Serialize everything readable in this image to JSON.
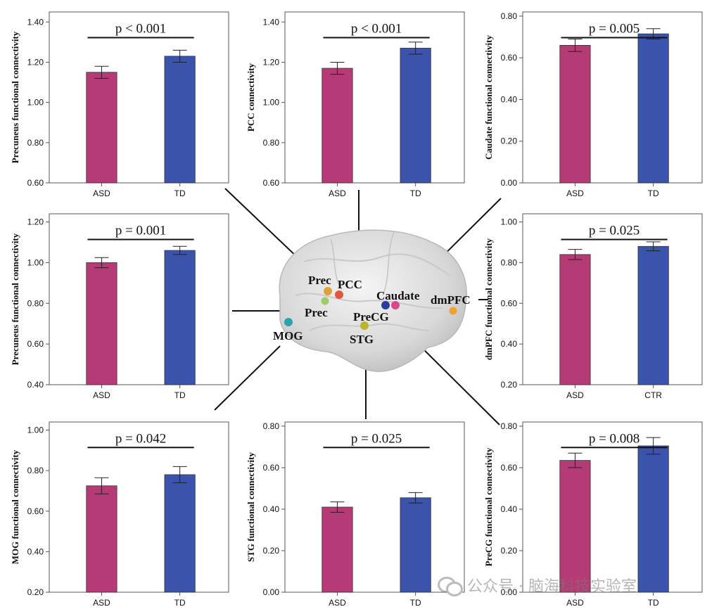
{
  "colors": {
    "asd": "#b63a75",
    "td": "#3b53aa",
    "frame": "#555555"
  },
  "watermark": {
    "text": "公众号 · 脑海科技实验室",
    "icon": "wechat-icon"
  },
  "brain": {
    "labels": [
      "Prec",
      "PCC",
      "Caudate",
      "dmPFC",
      "Prec",
      "PreCG",
      "MOG",
      "STG"
    ],
    "nodes": [
      {
        "region": "Prec",
        "color": "#e0a13a"
      },
      {
        "region": "PCC",
        "color": "#e2563c"
      },
      {
        "region": "Prec",
        "color": "#9ccd6a"
      },
      {
        "region": "Caudate",
        "color": "#2a3ca0"
      },
      {
        "region": "Caudate",
        "color": "#d9488a"
      },
      {
        "region": "dmPFC",
        "color": "#f0a230"
      },
      {
        "region": "PreCG",
        "color": "#b9b531"
      },
      {
        "region": "MOG",
        "color": "#2aa2b0"
      }
    ]
  },
  "chart_data": [
    {
      "id": "precuneus-top",
      "type": "bar",
      "categories": [
        "ASD",
        "TD"
      ],
      "values": [
        1.15,
        1.23
      ],
      "errors": [
        0.03,
        0.03
      ],
      "ylabel": "Precuneus functional connectivity",
      "ylim": [
        0.6,
        1.45
      ],
      "yticks": [
        "0.60",
        "0.80",
        "1.00",
        "1.20",
        "1.40"
      ],
      "pvalue": "p < 0.001"
    },
    {
      "id": "pcc",
      "type": "bar",
      "categories": [
        "ASD",
        "TD"
      ],
      "values": [
        1.17,
        1.27
      ],
      "errors": [
        0.03,
        0.03
      ],
      "ylabel": "PCC connectivity",
      "ylim": [
        0.6,
        1.45
      ],
      "yticks": [
        "0.60",
        "0.80",
        "1.00",
        "1.20",
        "1.40"
      ],
      "pvalue": "p < 0.001"
    },
    {
      "id": "caudate",
      "type": "bar",
      "categories": [
        "ASD",
        "TD"
      ],
      "values": [
        0.66,
        0.715
      ],
      "errors": [
        0.03,
        0.025
      ],
      "ylabel": "Caudate functional connectivity",
      "ylim": [
        0.0,
        0.82
      ],
      "yticks": [
        "0.00",
        "0.20",
        "0.40",
        "0.60",
        "0.80"
      ],
      "pvalue": "p = 0.005"
    },
    {
      "id": "precuneus-mid",
      "type": "bar",
      "categories": [
        "ASD",
        "TD"
      ],
      "values": [
        1.0,
        1.06
      ],
      "errors": [
        0.025,
        0.02
      ],
      "ylabel": "Precuneus functional connectivity",
      "ylim": [
        0.4,
        1.24
      ],
      "yticks": [
        "0.40",
        "0.60",
        "0.80",
        "1.00",
        "1.20"
      ],
      "pvalue": "p = 0.001"
    },
    {
      "id": "dmpfc",
      "type": "bar",
      "categories": [
        "ASD",
        "CTR"
      ],
      "values": [
        0.84,
        0.88
      ],
      "errors": [
        0.025,
        0.022
      ],
      "ylabel": "dmPFC functional connectivity",
      "ylim": [
        0.2,
        1.04
      ],
      "yticks": [
        "0.20",
        "0.40",
        "0.60",
        "0.80",
        "1.00"
      ],
      "pvalue": "p = 0.025"
    },
    {
      "id": "mog",
      "type": "bar",
      "categories": [
        "ASD",
        "TD"
      ],
      "values": [
        0.725,
        0.78
      ],
      "errors": [
        0.04,
        0.04
      ],
      "ylabel": "MOG functional connectivity",
      "ylim": [
        0.2,
        1.04
      ],
      "yticks": [
        "0.20",
        "0.40",
        "0.60",
        "0.80",
        "1.00"
      ],
      "pvalue": "p = 0.042"
    },
    {
      "id": "stg",
      "type": "bar",
      "categories": [
        "ASD",
        "TD"
      ],
      "values": [
        0.41,
        0.455
      ],
      "errors": [
        0.025,
        0.025
      ],
      "ylabel": "STG functional connectivity",
      "ylim": [
        0.0,
        0.82
      ],
      "yticks": [
        "0.00",
        "0.20",
        "0.40",
        "0.60",
        "0.80"
      ],
      "pvalue": "p = 0.025"
    },
    {
      "id": "precg",
      "type": "bar",
      "categories": [
        "ASD",
        "TD"
      ],
      "values": [
        0.635,
        0.705
      ],
      "errors": [
        0.035,
        0.04
      ],
      "ylabel": "PreCG functional connectivity",
      "ylim": [
        0.0,
        0.82
      ],
      "yticks": [
        "0.00",
        "0.20",
        "0.40",
        "0.60",
        "0.80"
      ],
      "pvalue": "p = 0.008"
    }
  ]
}
